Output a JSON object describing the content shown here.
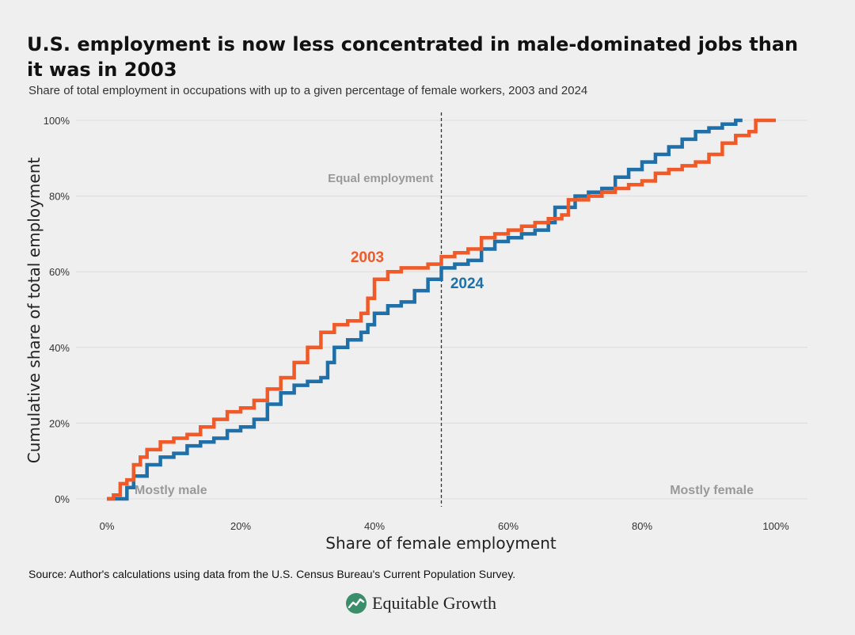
{
  "header": {
    "title": "U.S. employment is now less concentrated in male-dominated jobs than it was in 2003",
    "subtitle": "Share of total employment in occupations with up to a given percentage of female workers, 2003 and 2024"
  },
  "footer": {
    "source": "Source: Author's calculations using data from the U.S. Census Bureau's Current Population Survey.",
    "logo_text": "Equitable Growth"
  },
  "colors": {
    "s2003": "#f05a28",
    "s2024": "#1f6fa8",
    "grid": "#dcdcdc",
    "annotation": "#999999",
    "logo_green": "#3a8f6a"
  },
  "chart_data": {
    "type": "line",
    "title": "U.S. employment is now less concentrated in male-dominated jobs than it was in 2003",
    "xlabel": "Share of female employment",
    "ylabel": "Cumulative share of total employment",
    "xlim": [
      0,
      100
    ],
    "ylim": [
      0,
      100
    ],
    "x_ticks": [
      0,
      20,
      40,
      60,
      80,
      100
    ],
    "x_tick_labels": [
      "0%",
      "20%",
      "40%",
      "60%",
      "80%",
      "100%"
    ],
    "y_ticks": [
      0,
      20,
      40,
      60,
      80,
      100
    ],
    "y_tick_labels": [
      "0%",
      "20%",
      "40%",
      "60%",
      "80%",
      "100%"
    ],
    "reference_line": {
      "x": 50,
      "label": "Equal employment"
    },
    "annotations": {
      "left": "Mostly male",
      "right": "Mostly female"
    },
    "series": [
      {
        "name": "2003",
        "points": [
          [
            0,
            0
          ],
          [
            1,
            1
          ],
          [
            2,
            4
          ],
          [
            3,
            5
          ],
          [
            4,
            9
          ],
          [
            5,
            11
          ],
          [
            6,
            13
          ],
          [
            8,
            15
          ],
          [
            10,
            16
          ],
          [
            12,
            17
          ],
          [
            14,
            19
          ],
          [
            16,
            21
          ],
          [
            18,
            23
          ],
          [
            20,
            24
          ],
          [
            22,
            26
          ],
          [
            24,
            29
          ],
          [
            26,
            32
          ],
          [
            28,
            36
          ],
          [
            30,
            40
          ],
          [
            32,
            44
          ],
          [
            34,
            46
          ],
          [
            36,
            47
          ],
          [
            38,
            49
          ],
          [
            39,
            53
          ],
          [
            40,
            58
          ],
          [
            42,
            60
          ],
          [
            44,
            61
          ],
          [
            46,
            61
          ],
          [
            48,
            62
          ],
          [
            50,
            64
          ],
          [
            52,
            65
          ],
          [
            54,
            66
          ],
          [
            56,
            69
          ],
          [
            58,
            70
          ],
          [
            60,
            71
          ],
          [
            62,
            72
          ],
          [
            64,
            73
          ],
          [
            66,
            74
          ],
          [
            68,
            75
          ],
          [
            69,
            79
          ],
          [
            72,
            80
          ],
          [
            74,
            81
          ],
          [
            76,
            82
          ],
          [
            78,
            83
          ],
          [
            80,
            84
          ],
          [
            82,
            86
          ],
          [
            84,
            87
          ],
          [
            86,
            88
          ],
          [
            88,
            89
          ],
          [
            90,
            91
          ],
          [
            92,
            94
          ],
          [
            94,
            96
          ],
          [
            96,
            97
          ],
          [
            97,
            100
          ],
          [
            100,
            100
          ]
        ]
      },
      {
        "name": "2024",
        "points": [
          [
            0,
            0
          ],
          [
            2,
            0
          ],
          [
            3,
            3
          ],
          [
            4,
            6
          ],
          [
            6,
            9
          ],
          [
            8,
            11
          ],
          [
            10,
            12
          ],
          [
            12,
            14
          ],
          [
            14,
            15
          ],
          [
            16,
            16
          ],
          [
            18,
            18
          ],
          [
            20,
            19
          ],
          [
            22,
            21
          ],
          [
            24,
            25
          ],
          [
            26,
            28
          ],
          [
            28,
            30
          ],
          [
            30,
            31
          ],
          [
            32,
            32
          ],
          [
            33,
            36
          ],
          [
            34,
            40
          ],
          [
            36,
            42
          ],
          [
            38,
            44
          ],
          [
            39,
            46
          ],
          [
            40,
            49
          ],
          [
            42,
            51
          ],
          [
            44,
            52
          ],
          [
            46,
            55
          ],
          [
            48,
            58
          ],
          [
            50,
            61
          ],
          [
            52,
            62
          ],
          [
            54,
            63
          ],
          [
            56,
            66
          ],
          [
            58,
            68
          ],
          [
            60,
            69
          ],
          [
            62,
            70
          ],
          [
            64,
            71
          ],
          [
            66,
            73
          ],
          [
            67,
            77
          ],
          [
            70,
            80
          ],
          [
            72,
            81
          ],
          [
            74,
            82
          ],
          [
            76,
            85
          ],
          [
            78,
            87
          ],
          [
            80,
            89
          ],
          [
            82,
            91
          ],
          [
            84,
            93
          ],
          [
            86,
            95
          ],
          [
            88,
            97
          ],
          [
            90,
            98
          ],
          [
            92,
            99
          ],
          [
            94,
            100
          ],
          [
            95,
            100
          ]
        ]
      }
    ]
  }
}
